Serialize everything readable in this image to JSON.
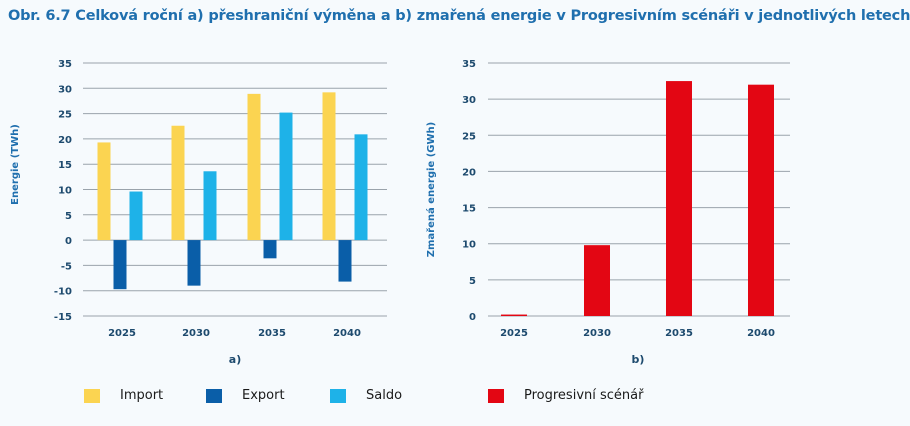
{
  "title": "Obr. 6.7 Celková roční a) přeshraniční výměna a b) zmařená energie v Progresivním scénáři v jednotlivých letech",
  "chart_data": [
    {
      "type": "bar",
      "subtitle": "a)",
      "ylabel": "Energie (TWh)",
      "xlabel": "",
      "ylim": [
        -15,
        35
      ],
      "yticks": [
        35,
        30,
        25,
        20,
        15,
        10,
        5,
        0,
        -5,
        -10,
        -15
      ],
      "grid": true,
      "legend": "bottom",
      "categories": [
        "2025",
        "2030",
        "2035",
        "2040"
      ],
      "series": [
        {
          "name": "Import",
          "color": "#fbd451",
          "values": [
            19.3,
            22.6,
            28.9,
            29.2
          ]
        },
        {
          "name": "Export",
          "color": "#0a5ea8",
          "values": [
            -9.7,
            -9.0,
            -3.6,
            -8.2
          ]
        },
        {
          "name": "Saldo",
          "color": "#1eb2e8",
          "values": [
            9.6,
            13.6,
            25.2,
            20.9
          ]
        }
      ]
    },
    {
      "type": "bar",
      "subtitle": "b)",
      "ylabel": "Zmařená energie (GWh)",
      "xlabel": "",
      "ylim": [
        0,
        35
      ],
      "yticks": [
        35,
        30,
        25,
        20,
        15,
        10,
        5,
        0
      ],
      "grid": true,
      "legend": "bottom",
      "categories": [
        "2025",
        "2030",
        "2035",
        "2040"
      ],
      "series": [
        {
          "name": "Progresivní scénář",
          "color": "#e30613",
          "values": [
            0.2,
            9.8,
            32.5,
            32.0
          ]
        }
      ]
    }
  ]
}
